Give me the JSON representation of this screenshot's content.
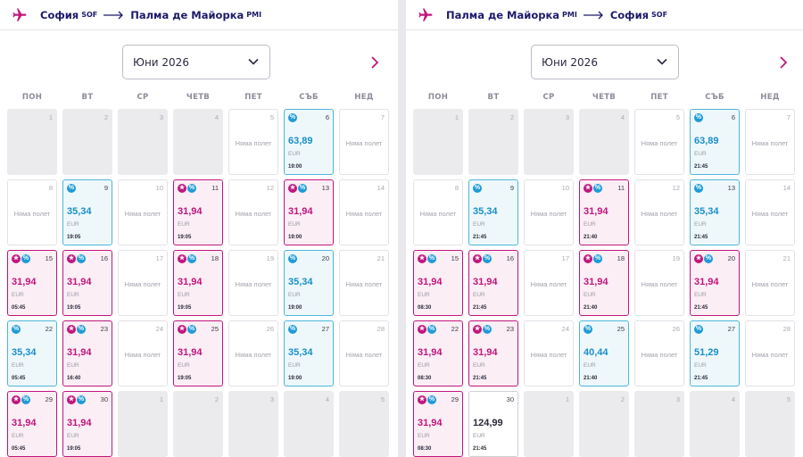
{
  "no_flight": "Няма полет",
  "currency": "EUR",
  "icons": {
    "plane": "plane-icon",
    "arrow": "long-arrow-right-icon",
    "dropdown": "chevron-down-icon",
    "next": "chevron-right-icon",
    "star_badge": "star-badge-icon",
    "discount_badge": "percent-badge-icon"
  },
  "colors": {
    "navy": "#1c1a6b",
    "magenta": "#c0167d",
    "blue": "#1f9bd6"
  },
  "weekdays": [
    "ПОН",
    "ВТ",
    "СР",
    "ЧЕТВ",
    "ПЕТ",
    "СЪБ",
    "НЕД"
  ],
  "panels": [
    {
      "id": "outbound",
      "from_city": "София",
      "from_code": "SOF",
      "to_city": "Палма де Майорка",
      "to_code": "PMI",
      "month": "Юни 2026",
      "days": [
        {
          "day": "1",
          "state": "disabled"
        },
        {
          "day": "2",
          "state": "disabled"
        },
        {
          "day": "3",
          "state": "disabled"
        },
        {
          "day": "4",
          "state": "disabled"
        },
        {
          "day": "5",
          "state": "none"
        },
        {
          "day": "6",
          "state": "blue",
          "badges": [
            "pct"
          ],
          "price": "63,89",
          "time": "19:00"
        },
        {
          "day": "7",
          "state": "none"
        },
        {
          "day": "8",
          "state": "none"
        },
        {
          "day": "9",
          "state": "blue",
          "badges": [
            "pct"
          ],
          "price": "35,34",
          "time": "19:05"
        },
        {
          "day": "10",
          "state": "none"
        },
        {
          "day": "11",
          "state": "pink",
          "badges": [
            "star",
            "pct"
          ],
          "price": "31,94",
          "time": "19:05"
        },
        {
          "day": "12",
          "state": "none"
        },
        {
          "day": "13",
          "state": "pink",
          "badges": [
            "star",
            "pct"
          ],
          "price": "31,94",
          "time": "19:00"
        },
        {
          "day": "14",
          "state": "none"
        },
        {
          "day": "15",
          "state": "pink",
          "badges": [
            "star",
            "pct"
          ],
          "price": "31,94",
          "time": "05:45"
        },
        {
          "day": "16",
          "state": "pink",
          "badges": [
            "star",
            "pct"
          ],
          "price": "31,94",
          "time": "19:05"
        },
        {
          "day": "17",
          "state": "none"
        },
        {
          "day": "18",
          "state": "pink",
          "badges": [
            "star",
            "pct"
          ],
          "price": "31,94",
          "time": "19:05"
        },
        {
          "day": "19",
          "state": "none"
        },
        {
          "day": "20",
          "state": "blue",
          "badges": [
            "pct"
          ],
          "price": "35,34",
          "time": "19:00"
        },
        {
          "day": "21",
          "state": "none"
        },
        {
          "day": "22",
          "state": "blue",
          "badges": [
            "pct"
          ],
          "price": "35,34",
          "time": "05:45"
        },
        {
          "day": "23",
          "state": "pink",
          "badges": [
            "star",
            "pct"
          ],
          "price": "31,94",
          "time": "16:40"
        },
        {
          "day": "24",
          "state": "none"
        },
        {
          "day": "25",
          "state": "pink",
          "badges": [
            "star",
            "pct"
          ],
          "price": "31,94",
          "time": "19:05"
        },
        {
          "day": "26",
          "state": "none"
        },
        {
          "day": "27",
          "state": "blue",
          "badges": [
            "pct"
          ],
          "price": "35,34",
          "time": "19:00"
        },
        {
          "day": "28",
          "state": "none"
        },
        {
          "day": "29",
          "state": "pink",
          "badges": [
            "star",
            "pct"
          ],
          "price": "31,94",
          "time": "05:45"
        },
        {
          "day": "30",
          "state": "pink",
          "badges": [
            "star",
            "pct"
          ],
          "price": "31,94",
          "time": "19:05"
        },
        {
          "day": "1",
          "state": "disabled"
        },
        {
          "day": "2",
          "state": "disabled"
        },
        {
          "day": "3",
          "state": "disabled"
        },
        {
          "day": "4",
          "state": "disabled"
        },
        {
          "day": "5",
          "state": "disabled"
        }
      ]
    },
    {
      "id": "return",
      "from_city": "Палма де Майорка",
      "from_code": "PMI",
      "to_city": "София",
      "to_code": "SOF",
      "month": "Юни 2026",
      "days": [
        {
          "day": "1",
          "state": "disabled"
        },
        {
          "day": "2",
          "state": "disabled"
        },
        {
          "day": "3",
          "state": "disabled"
        },
        {
          "day": "4",
          "state": "disabled"
        },
        {
          "day": "5",
          "state": "none"
        },
        {
          "day": "6",
          "state": "blue",
          "badges": [
            "pct"
          ],
          "price": "63,89",
          "time": "21:45"
        },
        {
          "day": "7",
          "state": "none"
        },
        {
          "day": "8",
          "state": "none"
        },
        {
          "day": "9",
          "state": "blue",
          "badges": [
            "pct"
          ],
          "price": "35,34",
          "time": "21:45"
        },
        {
          "day": "10",
          "state": "none"
        },
        {
          "day": "11",
          "state": "pink",
          "badges": [
            "star",
            "pct"
          ],
          "price": "31,94",
          "time": "21:40"
        },
        {
          "day": "12",
          "state": "none"
        },
        {
          "day": "13",
          "state": "blue",
          "badges": [
            "pct"
          ],
          "price": "35,34",
          "time": "21:45"
        },
        {
          "day": "14",
          "state": "none"
        },
        {
          "day": "15",
          "state": "pink",
          "badges": [
            "star",
            "pct"
          ],
          "price": "31,94",
          "time": "08:30"
        },
        {
          "day": "16",
          "state": "pink",
          "badges": [
            "star",
            "pct"
          ],
          "price": "31,94",
          "time": "21:45"
        },
        {
          "day": "17",
          "state": "none"
        },
        {
          "day": "18",
          "state": "pink",
          "badges": [
            "star",
            "pct"
          ],
          "price": "31,94",
          "time": "21:40"
        },
        {
          "day": "19",
          "state": "none"
        },
        {
          "day": "20",
          "state": "pink",
          "badges": [
            "star",
            "pct"
          ],
          "price": "31,94",
          "time": "21:45"
        },
        {
          "day": "21",
          "state": "none"
        },
        {
          "day": "22",
          "state": "pink",
          "badges": [
            "star",
            "pct"
          ],
          "price": "31,94",
          "time": "08:30"
        },
        {
          "day": "23",
          "state": "pink",
          "badges": [
            "star",
            "pct"
          ],
          "price": "31,94",
          "time": "21:45"
        },
        {
          "day": "24",
          "state": "none"
        },
        {
          "day": "25",
          "state": "blue",
          "badges": [
            "pct"
          ],
          "price": "40,44",
          "time": "21:40"
        },
        {
          "day": "26",
          "state": "none"
        },
        {
          "day": "27",
          "state": "blue",
          "badges": [
            "pct"
          ],
          "price": "51,29",
          "time": "21:45"
        },
        {
          "day": "28",
          "state": "none"
        },
        {
          "day": "29",
          "state": "pink",
          "badges": [
            "star",
            "pct"
          ],
          "price": "31,94",
          "time": "08:30"
        },
        {
          "day": "30",
          "state": "plain",
          "badges": [],
          "price": "124,99",
          "time": "21:45"
        },
        {
          "day": "1",
          "state": "disabled"
        },
        {
          "day": "2",
          "state": "disabled"
        },
        {
          "day": "3",
          "state": "disabled"
        },
        {
          "day": "4",
          "state": "disabled"
        },
        {
          "day": "5",
          "state": "disabled"
        }
      ]
    }
  ]
}
